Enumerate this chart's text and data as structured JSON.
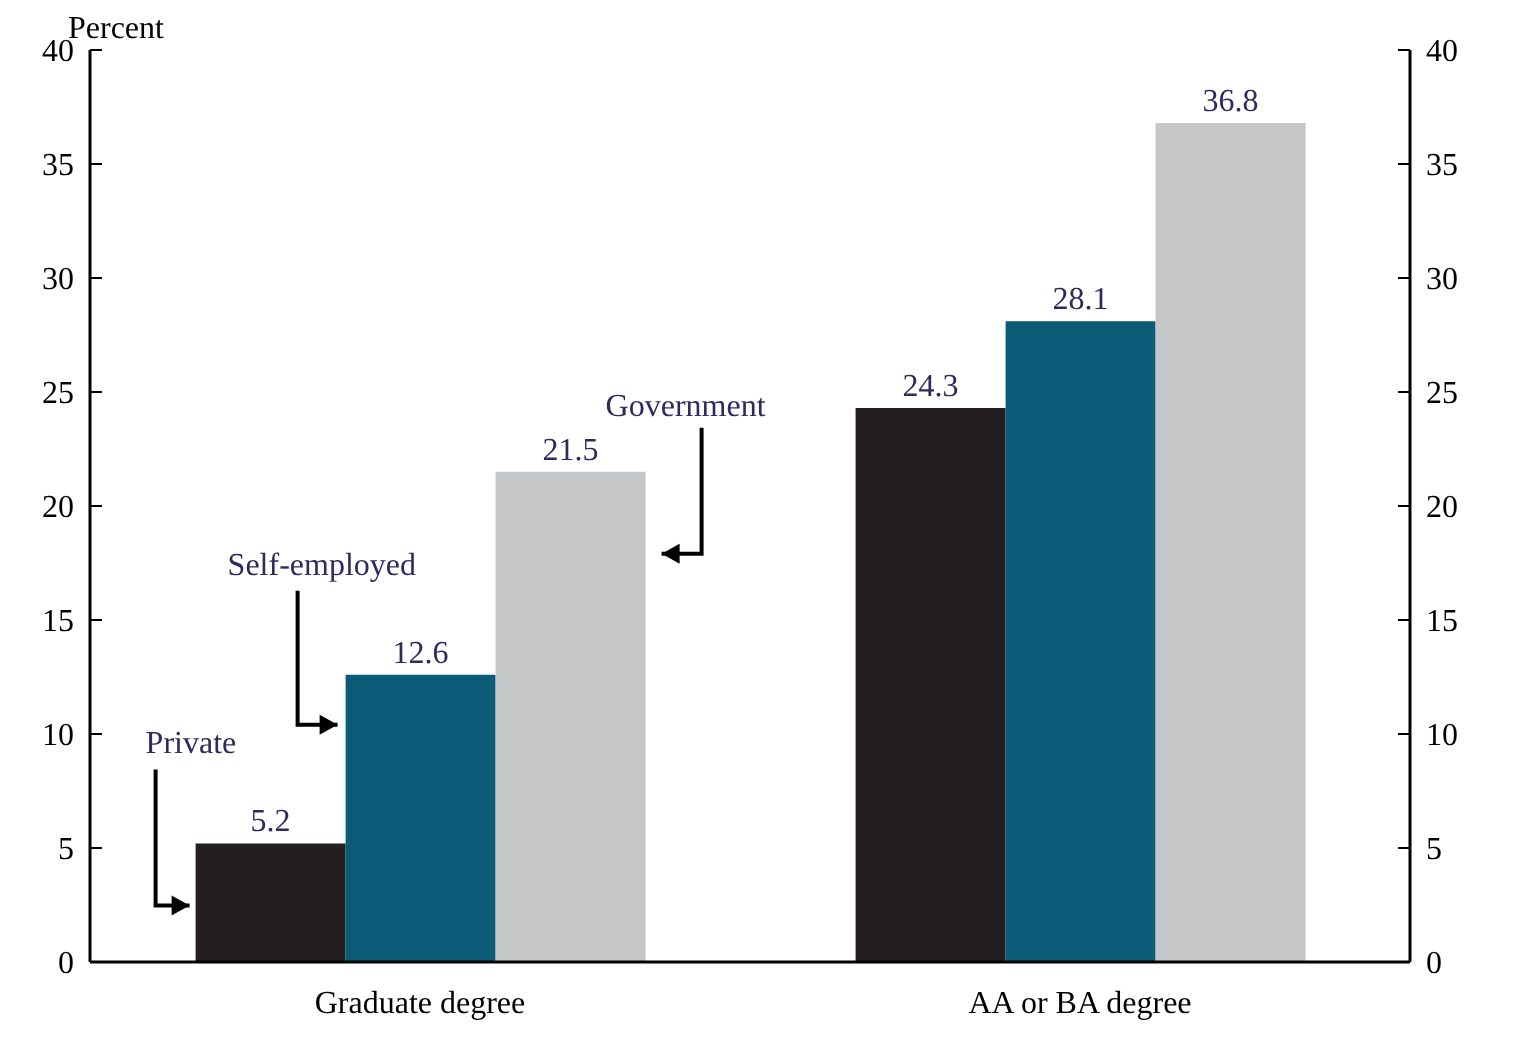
{
  "chart_data": {
    "type": "bar",
    "ylabel": "Percent",
    "categories": [
      "Graduate degree",
      "AA or BA degree"
    ],
    "series": [
      {
        "name": "Private",
        "color": "#231f20",
        "values": [
          5.2,
          24.3
        ]
      },
      {
        "name": "Self-employed",
        "color": "#0b5a78",
        "values": [
          12.6,
          28.1
        ]
      },
      {
        "name": "Government",
        "color": "#c5c6c8",
        "values": [
          21.5,
          36.8
        ]
      }
    ],
    "ylim": [
      0,
      40
    ],
    "yticks": [
      0,
      5,
      10,
      15,
      20,
      25,
      30,
      35,
      40
    ],
    "y2lim": [
      0,
      40
    ],
    "y2ticks": [
      0,
      5,
      10,
      15,
      20,
      25,
      30,
      35,
      40
    ],
    "data_labels": true,
    "grid": false,
    "legend": false
  }
}
